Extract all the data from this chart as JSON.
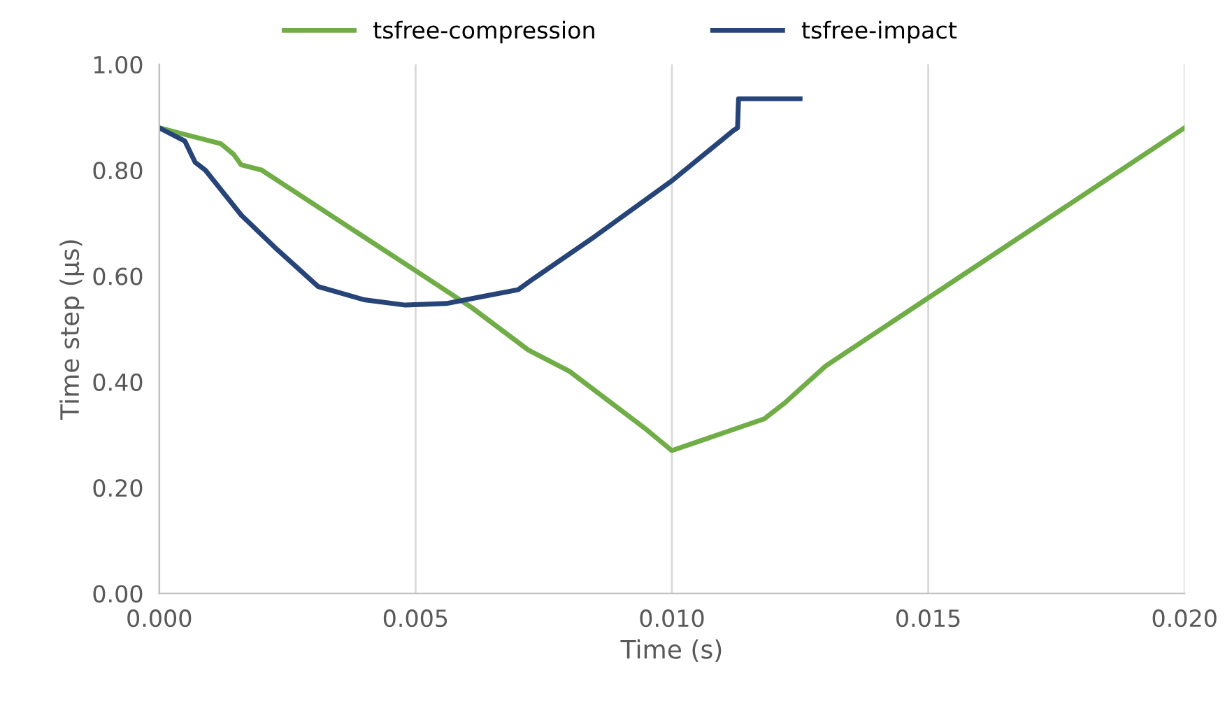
{
  "chart_data": {
    "type": "line",
    "xlabel": "Time (s)",
    "ylabel": "Time step (µs)",
    "legend": "top",
    "grid": "x",
    "marker": "none",
    "line_style": "solid",
    "xlim": [
      0,
      0.02
    ],
    "ylim": [
      0,
      1
    ],
    "xticks": [
      {
        "value": 0,
        "label": "0.000"
      },
      {
        "value": 0.005,
        "label": "0.005"
      },
      {
        "value": 0.01,
        "label": "0.010"
      },
      {
        "value": 0.015,
        "label": "0.015"
      },
      {
        "value": 0.02,
        "label": "0.020"
      }
    ],
    "yticks": [
      {
        "value": 0,
        "label": "0.00"
      },
      {
        "value": 0.2,
        "label": "0.20"
      },
      {
        "value": 0.4,
        "label": "0.40"
      },
      {
        "value": 0.6,
        "label": "0.60"
      },
      {
        "value": 0.8,
        "label": "0.80"
      },
      {
        "value": 1.0,
        "label": "1.00"
      }
    ],
    "series": [
      {
        "name": "tsfree-compression",
        "color": "#70ad47",
        "x": [
          0,
          0.0012,
          0.00145,
          0.0016,
          0.002,
          0.005,
          0.0061,
          0.0072,
          0.008,
          0.0095,
          0.01,
          0.0118,
          0.0122,
          0.013,
          0.02
        ],
        "values": [
          0.88,
          0.85,
          0.83,
          0.81,
          0.8,
          0.61,
          0.54,
          0.46,
          0.42,
          0.31,
          0.27,
          0.33,
          0.36,
          0.43,
          0.88
        ]
      },
      {
        "name": "tsfree-impact",
        "color": "#264478",
        "x": [
          0,
          0.0005,
          0.0007,
          0.0009,
          0.0016,
          0.0023,
          0.0031,
          0.004,
          0.0048,
          0.0056,
          0.0064,
          0.007,
          0.0073,
          0.0085,
          0.01,
          0.0112,
          0.01128,
          0.0113,
          0.0125
        ],
        "values": [
          0.88,
          0.855,
          0.815,
          0.8,
          0.715,
          0.65,
          0.58,
          0.555,
          0.545,
          0.548,
          0.563,
          0.574,
          0.595,
          0.675,
          0.78,
          0.875,
          0.88,
          0.935,
          0.935
        ]
      }
    ]
  }
}
